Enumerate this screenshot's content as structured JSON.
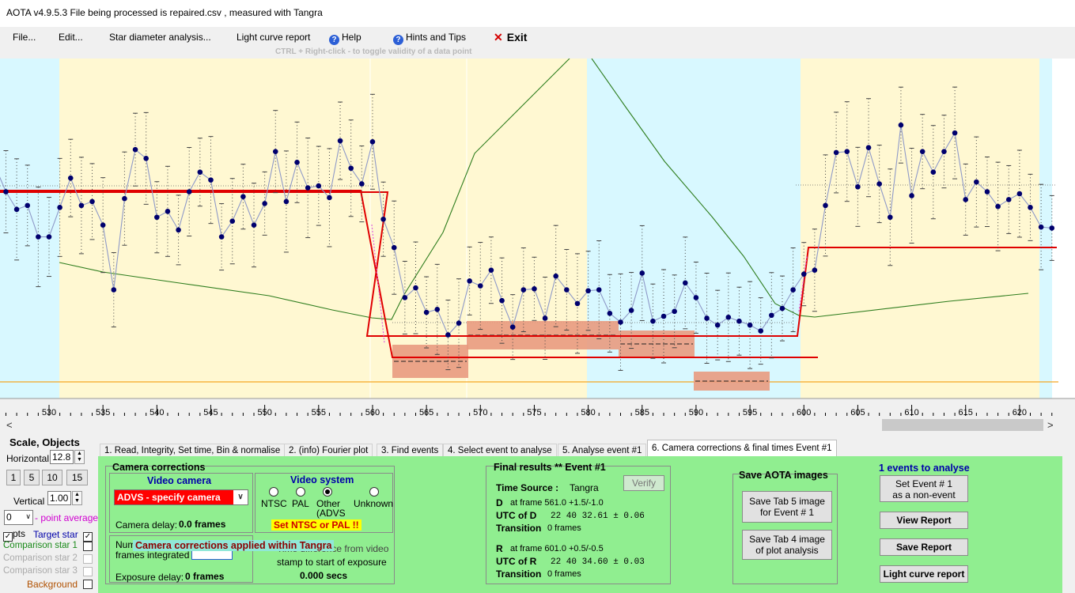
{
  "window": {
    "title": "AOTA v4.9.5.3    File being processed is  repaired.csv ,  measured with Tangra"
  },
  "menu": {
    "file": "File...",
    "edit": "Edit...",
    "star_diameter": "Star diameter analysis...",
    "light_curve": "Light curve report",
    "help": "Help",
    "hints": "Hints and Tips",
    "exit": "Exit",
    "hint_text": "CTRL + Right-click   -   to toggle validity of a data point"
  },
  "chart_data": {
    "type": "line",
    "xlim": [
      525.4,
      623.2
    ],
    "x_ticks": [
      530,
      535,
      540,
      545,
      550,
      555,
      560,
      565,
      570,
      575,
      580,
      585,
      590,
      595,
      600,
      605,
      610,
      615,
      620
    ],
    "x_tick_labels": [
      "530",
      "535",
      "540",
      "545",
      "550",
      "555",
      "560",
      "565",
      "570",
      "575",
      "580",
      "585",
      "590",
      "595",
      "600",
      "605",
      "610",
      "615",
      "620"
    ],
    "series": [
      {
        "x": [
          525,
          526,
          527,
          528,
          529,
          530,
          531,
          532,
          533,
          534,
          535,
          536,
          537,
          538,
          539,
          540,
          541,
          542,
          543,
          544,
          545,
          546,
          547,
          548,
          549,
          550,
          551,
          552,
          553,
          554,
          555,
          556,
          557,
          558,
          559,
          560,
          561,
          562,
          563,
          564,
          565,
          566,
          567,
          568,
          569,
          570,
          571,
          572,
          573,
          574,
          575,
          576,
          577,
          578,
          579,
          580,
          581,
          582,
          583,
          584,
          585,
          586,
          587,
          588,
          589,
          590,
          591,
          592,
          593,
          594,
          595,
          596,
          597,
          598,
          599,
          600,
          601,
          602,
          603,
          604,
          605,
          606,
          607,
          608,
          609,
          610,
          611,
          612,
          613,
          614,
          615,
          616,
          617,
          618,
          619,
          620,
          621,
          622,
          623
        ],
        "y": [
          0.78,
          0.52,
          0.34,
          0.38,
          0.06,
          0.06,
          0.36,
          0.66,
          0.38,
          0.42,
          0.18,
          -0.48,
          0.45,
          0.95,
          0.86,
          0.26,
          0.32,
          0.13,
          0.52,
          0.72,
          0.64,
          0.06,
          0.22,
          0.47,
          0.18,
          0.4,
          0.93,
          0.42,
          0.82,
          0.56,
          0.58,
          0.46,
          1.04,
          0.76,
          0.6,
          1.03,
          0.24,
          -0.05,
          -0.56,
          -0.46,
          -0.71,
          -0.68,
          -0.94,
          -0.82,
          -0.39,
          -0.44,
          -0.28,
          -0.59,
          -0.86,
          -0.48,
          -0.47,
          -0.77,
          -0.34,
          -0.48,
          -0.62,
          -0.49,
          -0.48,
          -0.72,
          -0.81,
          -0.69,
          -0.31,
          -0.8,
          -0.75,
          -0.7,
          -0.41,
          -0.56,
          -0.77,
          -0.84,
          -0.76,
          -0.8,
          -0.84,
          -0.9,
          -0.74,
          -0.67,
          -0.48,
          -0.32,
          -0.28,
          0.38,
          0.92,
          0.93,
          0.57,
          0.97,
          0.6,
          0.26,
          1.2,
          0.48,
          0.93,
          0.72,
          0.93,
          1.12,
          0.44,
          0.62,
          0.52,
          0.37,
          0.44,
          0.5,
          0.36,
          0.16,
          0.15
        ]
      }
    ],
    "baseline_level": 0.62,
    "event_level": -0.45,
    "event_D_frame": 561.0,
    "event_R_frame": 601.0
  },
  "left_panel": {
    "scale_title": "Scale,  Objects",
    "horizontal_label": "Horizontal",
    "horizontal_value": "12.8",
    "scale_buttons": [
      "1",
      "5",
      "10",
      "15"
    ],
    "vertical_label": "Vertical",
    "vertical_value": "1.00",
    "point_avg_value": "0",
    "point_avg_label": "- point average",
    "pts_label": "pts",
    "target_star": "Target star",
    "comp1": "Comparison star 1",
    "comp2": "Comparison star 2",
    "comp3": "Comparison star 3",
    "background": "Background"
  },
  "tabs": [
    "1.  Read, Integrity, Set time, Bin & normalise",
    "2. (info)  Fourier plot",
    "3. Find events",
    "4. Select event to analyse",
    "5. Analyse event #1",
    "6. Camera corrections & final times Event #1"
  ],
  "camera": {
    "title": "Camera corrections",
    "video_camera": "Video camera",
    "camera_value": "ADVS - specify camera",
    "camera_delay": "Camera delay:",
    "camera_delay_value": "0.0 frames",
    "video_system": "Video system",
    "ntsc": "NTSC",
    "pal": "PAL",
    "other": "Other",
    "other_sub": "(ADVS",
    "unknown": "Unknown",
    "set_warning": "Set NTSC or PAL !!",
    "num_frames_1": "Num",
    "num_frames_2": "frames integrated",
    "applied": "Camera corrections applied within Tangra",
    "time_diff_1": "Time difference from video",
    "time_diff_2": "stamp to start of exposure",
    "time_diff_value": "0.000 secs",
    "exposure_delay": "Exposure delay:",
    "exposure_delay_value": "0 frames"
  },
  "final": {
    "title": "Final results  **  Event #1",
    "time_source_label": "Time Source :",
    "time_source_value": "Tangra",
    "verify": "Verify",
    "d_label": "D",
    "d_frame": "at frame 561.0  +1.5/-1.0",
    "utc_d_label": "UTC of D",
    "utc_d_value": "22 40 32.61 ± 0.06",
    "transition_d_label": "Transition",
    "transition_d_value": "0 frames",
    "r_label": "R",
    "r_frame": "at frame 601.0  +0.5/-0.5",
    "utc_r_label": "UTC of R",
    "utc_r_value": "22 40 34.60 ± 0.03",
    "transition_r_label": "Transition",
    "transition_r_value": "0 frames"
  },
  "save_images": {
    "title": "Save AOTA images",
    "btn1_l1": "Save Tab 5 image",
    "btn1_l2": "for Event # 1",
    "btn2_l1": "Save Tab 4 image",
    "btn2_l2": "of plot analysis"
  },
  "events": {
    "title": "1 events to analyse",
    "set_l1": "Set Event # 1",
    "set_l2": "as a non-event",
    "view_report": "View Report",
    "save_report": "Save Report",
    "light_curve_report": "Light curve report"
  }
}
